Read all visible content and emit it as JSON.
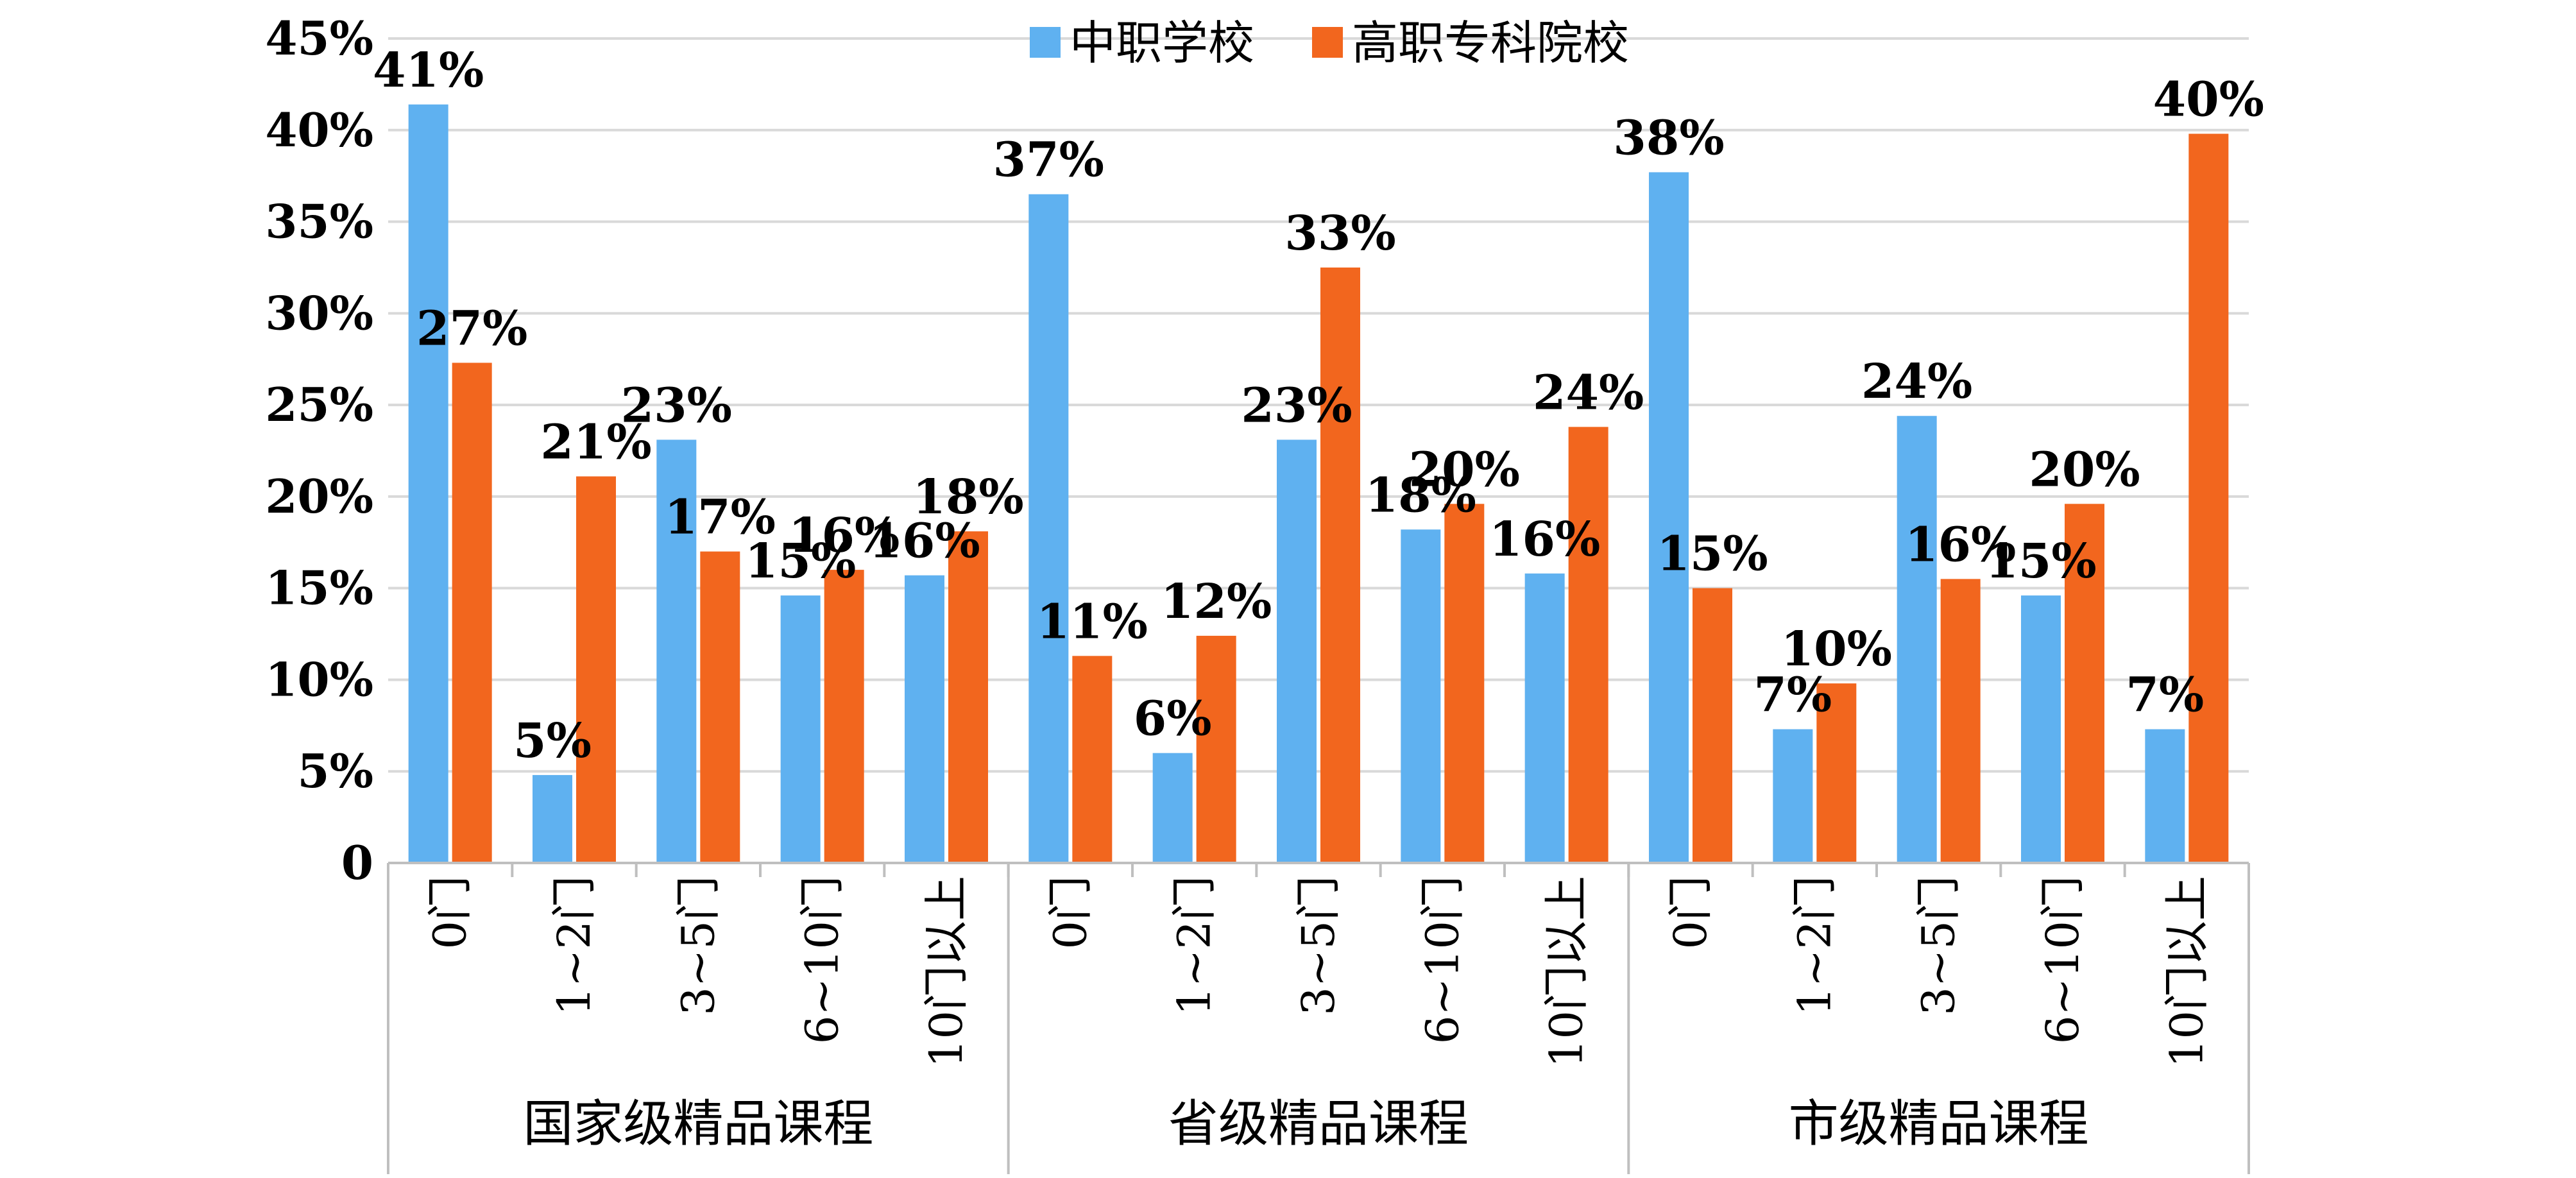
{
  "chart_data": {
    "type": "bar",
    "title": "",
    "xlabel": "",
    "ylabel": "",
    "ylim": [
      0,
      45
    ],
    "y_ticks": [
      "0",
      "5%",
      "10%",
      "15%",
      "20%",
      "25%",
      "30%",
      "35%",
      "40%",
      "45%"
    ],
    "grid": true,
    "legend_position": "top-center",
    "groups": [
      {
        "label": "国家级精品课程",
        "categories": [
          "0门",
          "1~2门",
          "3~5门",
          "6~10门",
          "10门以上"
        ]
      },
      {
        "label": "省级精品课程",
        "categories": [
          "0门",
          "1~2门",
          "3~5门",
          "6~10门",
          "10门以上"
        ]
      },
      {
        "label": "市级精品课程",
        "categories": [
          "0门",
          "1~2门",
          "3~5门",
          "6~10门",
          "10门以上"
        ]
      }
    ],
    "series": [
      {
        "name": "中职学校",
        "color": "#5fb1f0",
        "values": [
          41.4,
          4.8,
          23.1,
          14.6,
          15.7,
          36.5,
          6.0,
          23.1,
          18.2,
          15.8,
          37.7,
          7.3,
          24.4,
          14.6,
          7.3
        ],
        "labels": [
          "41%",
          "5%",
          "23%",
          "15%",
          "16%",
          "37%",
          "6%",
          "23%",
          "18%",
          "16%",
          "38%",
          "7%",
          "24%",
          "15%",
          "7%"
        ]
      },
      {
        "name": "高职专科院校",
        "color": "#f2661e",
        "values": [
          27.3,
          21.1,
          17.0,
          16.0,
          18.1,
          11.3,
          12.4,
          32.5,
          19.6,
          23.8,
          15.0,
          9.8,
          15.5,
          19.6,
          39.8
        ],
        "labels": [
          "27%",
          "21%",
          "17%",
          "16%",
          "18%",
          "11%",
          "12%",
          "33%",
          "20%",
          "24%",
          "15%",
          "10%",
          "16%",
          "20%",
          "40%"
        ]
      }
    ]
  }
}
